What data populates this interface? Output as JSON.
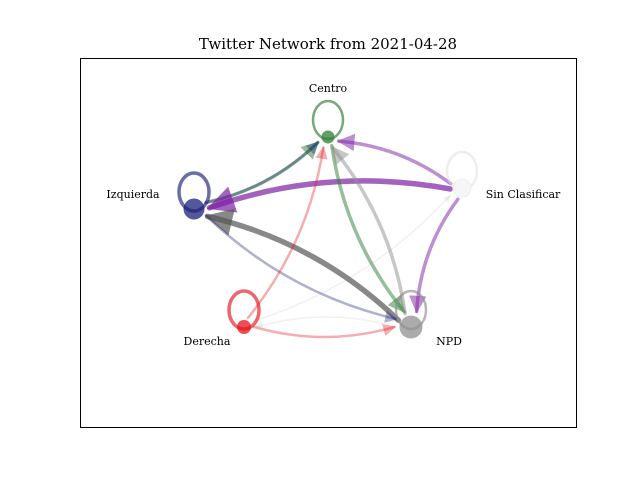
{
  "figure": {
    "title": "Twitter Network from 2021-04-28"
  },
  "nodes": [
    {
      "id": "centro",
      "label": "Centro",
      "color": "#2e7d32"
    },
    {
      "id": "izquierda",
      "label": "Izquierda",
      "color": "#1a1f7a"
    },
    {
      "id": "sin_clasificar",
      "label": "Sin Clasificar",
      "color": "#f5f5f5"
    },
    {
      "id": "derecha",
      "label": "Derecha",
      "color": "#e5131a"
    },
    {
      "id": "npd",
      "label": "NPD",
      "color": "#8f8f8f"
    }
  ],
  "edges": [
    {
      "from": "izquierda",
      "to": "centro",
      "color": "#2e7d32",
      "weight": "medium"
    },
    {
      "from": "izquierda",
      "to": "centro",
      "color": "#1a1f7a",
      "weight": "thin"
    },
    {
      "from": "sin_clasificar",
      "to": "centro",
      "color": "#7b1fa2",
      "weight": "medium"
    },
    {
      "from": "sin_clasificar",
      "to": "izquierda",
      "color": "#7b1fa2",
      "weight": "thick"
    },
    {
      "from": "sin_clasificar",
      "to": "npd",
      "color": "#7b1fa2",
      "weight": "medium"
    },
    {
      "from": "centro",
      "to": "npd",
      "color": "#2e7d32",
      "weight": "medium"
    },
    {
      "from": "npd",
      "to": "centro",
      "color": "#8f8f8f",
      "weight": "medium"
    },
    {
      "from": "npd",
      "to": "izquierda",
      "color": "#555555",
      "weight": "thick"
    },
    {
      "from": "izquierda",
      "to": "npd",
      "color": "#1a1f7a",
      "weight": "thin"
    },
    {
      "from": "derecha",
      "to": "centro",
      "color": "#e5131a",
      "weight": "thin"
    },
    {
      "from": "derecha",
      "to": "npd",
      "color": "#e5131a",
      "weight": "thin"
    },
    {
      "from": "npd",
      "to": "derecha",
      "color": "#8f8f8f",
      "weight": "faint"
    },
    {
      "from": "derecha",
      "to": "sin_clasificar",
      "color": "#8f8f8f",
      "weight": "faint"
    }
  ],
  "self_loops": [
    {
      "node": "centro",
      "color": "#2e7d32"
    },
    {
      "node": "izquierda",
      "color": "#1a1f7a"
    },
    {
      "node": "derecha",
      "color": "#e5131a"
    },
    {
      "node": "npd",
      "color": "#8f8f8f"
    },
    {
      "node": "sin_clasificar",
      "color": "#dddddd"
    }
  ]
}
